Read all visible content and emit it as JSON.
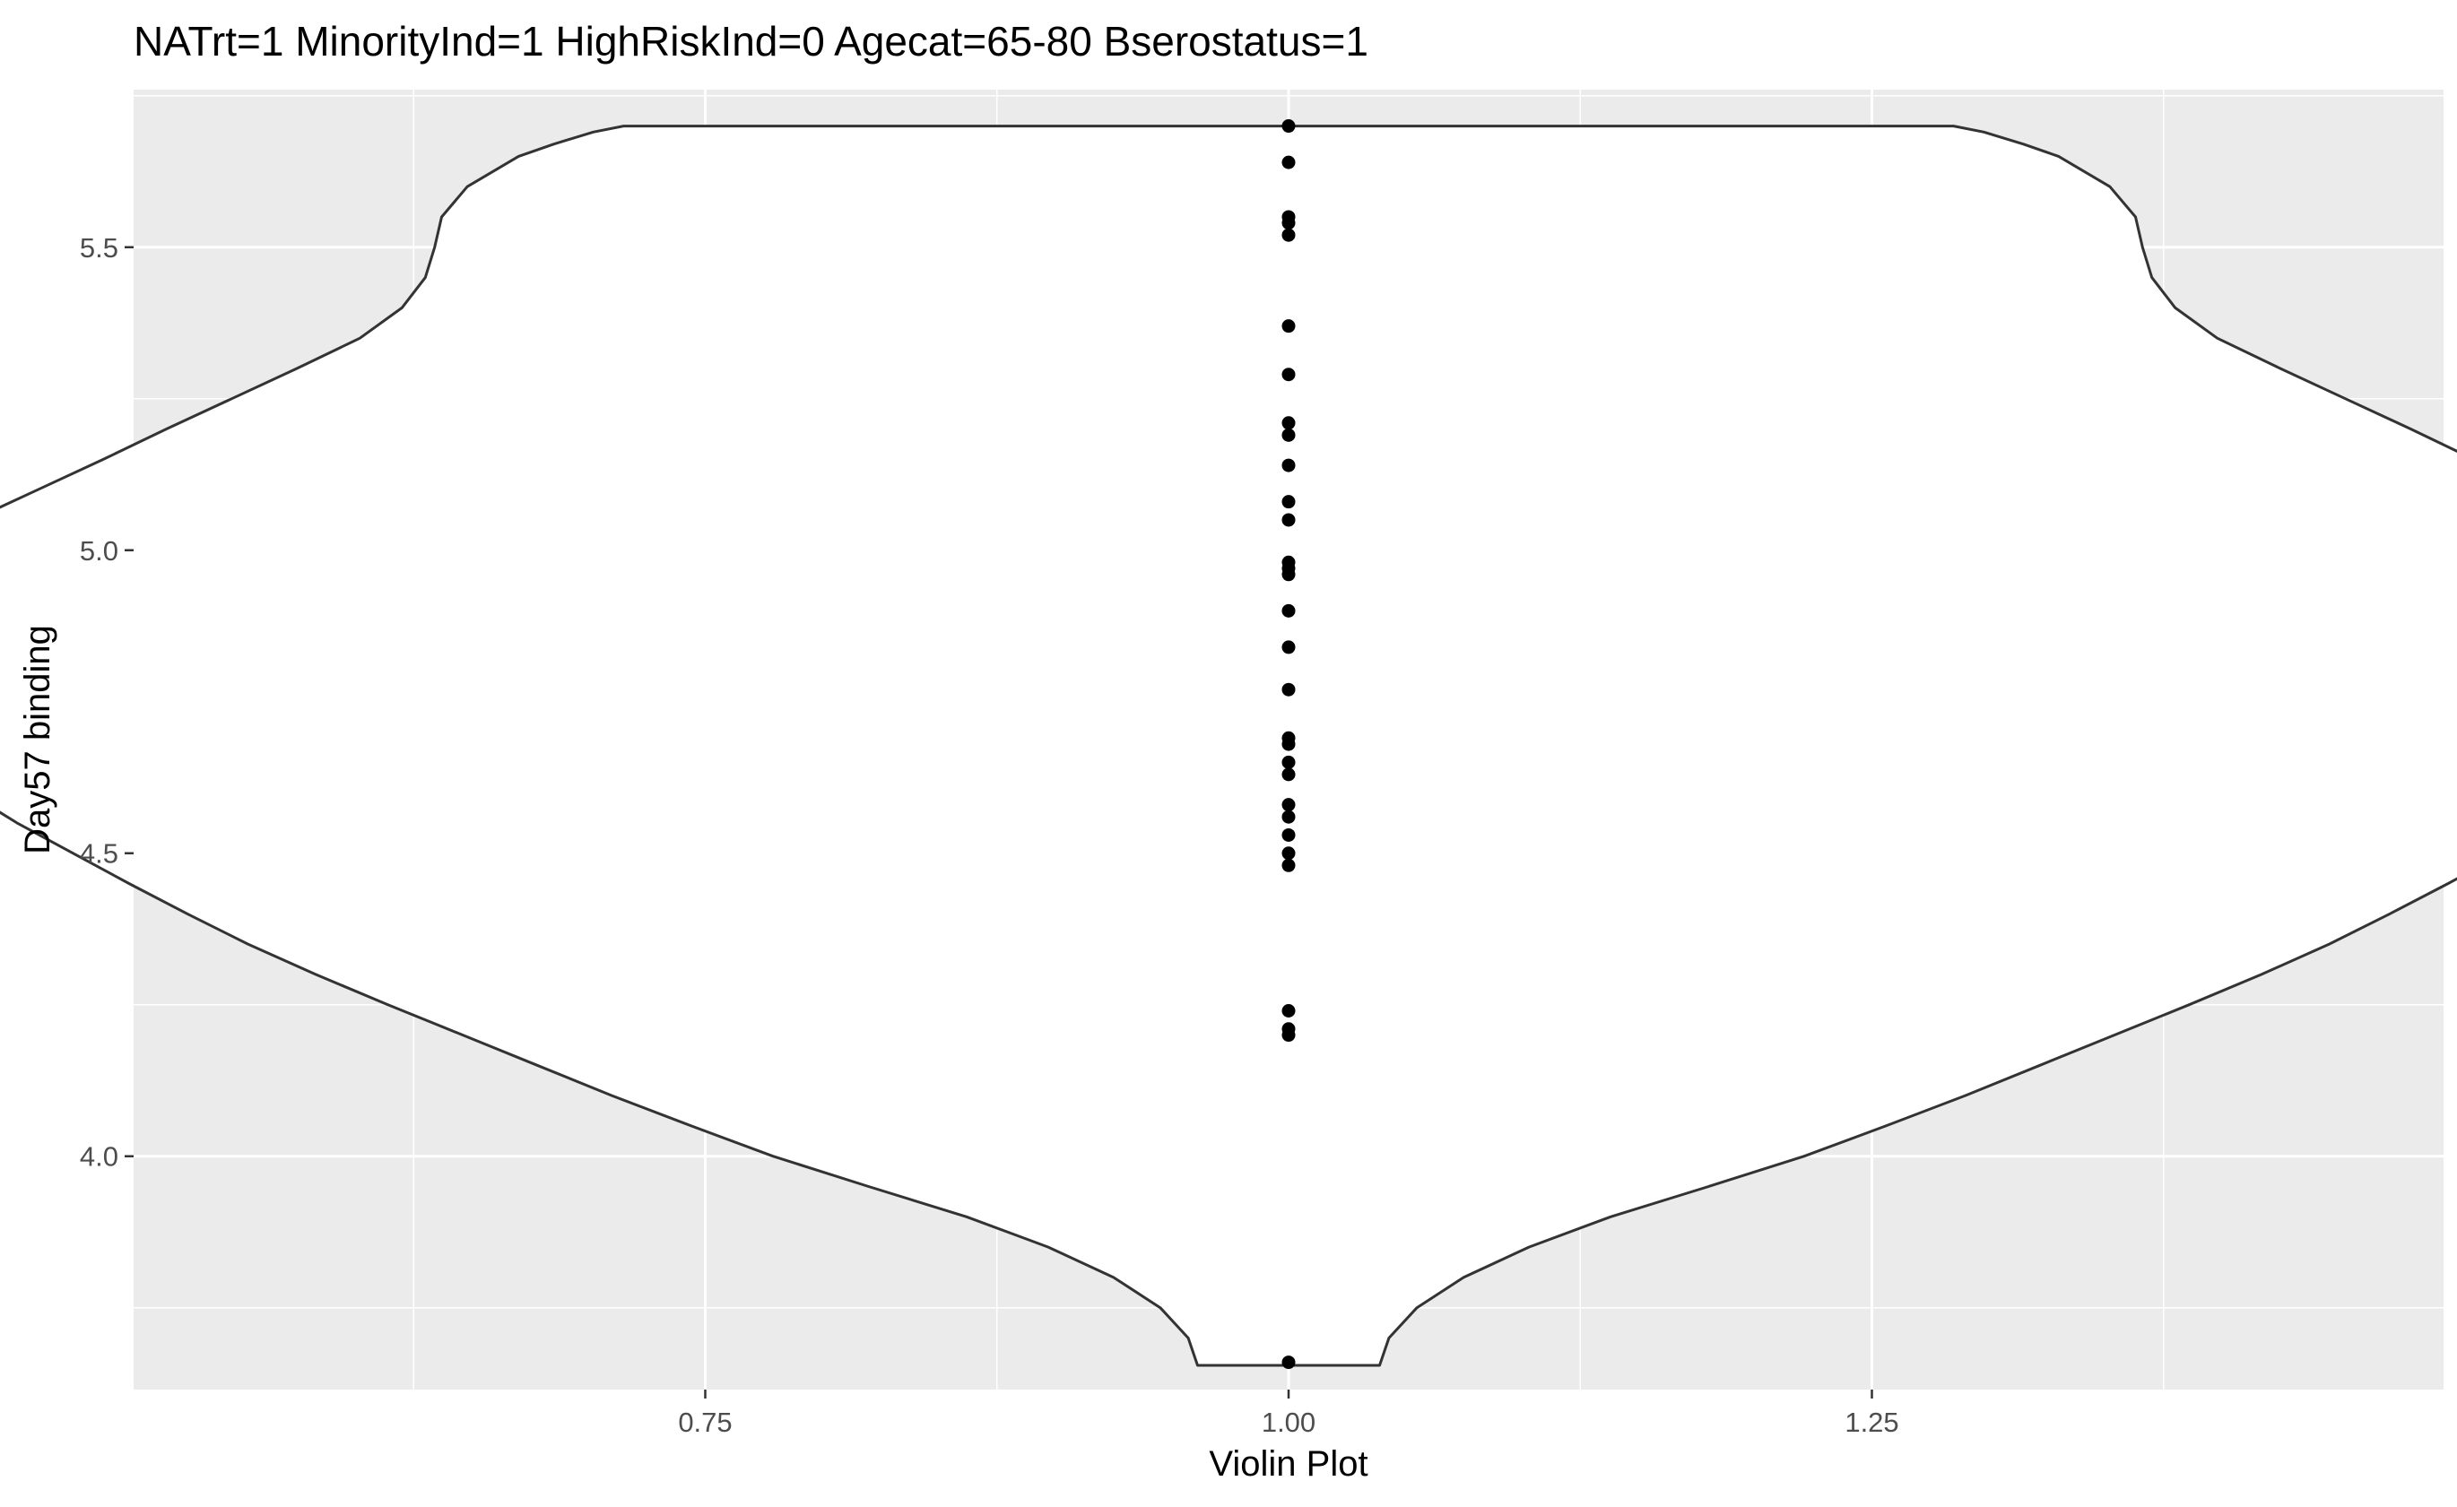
{
  "chart_data": {
    "type": "violin",
    "title": "NATrt=1 MinorityInd=1 HighRiskInd=0 Agecat=65-80 Bserostatus=1",
    "xlabel": "Violin Plot",
    "ylabel": "Day57 binding",
    "xlim": [
      0.505,
      1.495
    ],
    "ylim": [
      3.615,
      5.76
    ],
    "x_ticks": [
      0.75,
      1.0,
      1.25
    ],
    "x_tick_labels": [
      "0.75",
      "1.00",
      "1.25"
    ],
    "y_ticks": [
      4.0,
      4.5,
      5.0,
      5.5
    ],
    "y_tick_labels": [
      "4.0",
      "4.5",
      "5.0",
      "5.5"
    ],
    "grid": true,
    "panel_background": "#ebebeb",
    "grid_color": "#ffffff",
    "violin": {
      "x": 1.0,
      "fill": "#ffffff",
      "outline": "#333333",
      "half_width_profile": [
        [
          3.655,
          0.039
        ],
        [
          3.7,
          0.043
        ],
        [
          3.75,
          0.055
        ],
        [
          3.8,
          0.075
        ],
        [
          3.85,
          0.103
        ],
        [
          3.9,
          0.138
        ],
        [
          3.95,
          0.18
        ],
        [
          4.0,
          0.221
        ],
        [
          4.05,
          0.256
        ],
        [
          4.1,
          0.29
        ],
        [
          4.15,
          0.322
        ],
        [
          4.2,
          0.354
        ],
        [
          4.25,
          0.386
        ],
        [
          4.3,
          0.417
        ],
        [
          4.35,
          0.446
        ],
        [
          4.4,
          0.472
        ],
        [
          4.45,
          0.497
        ],
        [
          4.5,
          0.521
        ],
        [
          4.55,
          0.545
        ],
        [
          4.6,
          0.566
        ],
        [
          4.65,
          0.583
        ],
        [
          4.7,
          0.595
        ],
        [
          4.75,
          0.603
        ],
        [
          4.8,
          0.609
        ],
        [
          4.85,
          0.613
        ],
        [
          4.9,
          0.613
        ],
        [
          4.95,
          0.606
        ],
        [
          5.0,
          0.589
        ],
        [
          5.05,
          0.564
        ],
        [
          5.1,
          0.536
        ],
        [
          5.15,
          0.508
        ],
        [
          5.2,
          0.481
        ],
        [
          5.25,
          0.453
        ],
        [
          5.3,
          0.425
        ],
        [
          5.35,
          0.398
        ],
        [
          5.4,
          0.38
        ],
        [
          5.45,
          0.37
        ],
        [
          5.5,
          0.366
        ],
        [
          5.55,
          0.363
        ],
        [
          5.6,
          0.352
        ],
        [
          5.65,
          0.33
        ],
        [
          5.67,
          0.315
        ],
        [
          5.69,
          0.298
        ],
        [
          5.7,
          0.285
        ]
      ]
    },
    "points": {
      "x": 1.0,
      "y": [
        5.7,
        5.64,
        5.55,
        5.54,
        5.52,
        5.37,
        5.29,
        5.21,
        5.19,
        5.14,
        5.08,
        5.05,
        4.98,
        4.97,
        4.96,
        4.9,
        4.84,
        4.77,
        4.69,
        4.68,
        4.65,
        4.63,
        4.58,
        4.56,
        4.53,
        4.5,
        4.48,
        4.24,
        4.21,
        4.2,
        3.66
      ]
    }
  }
}
